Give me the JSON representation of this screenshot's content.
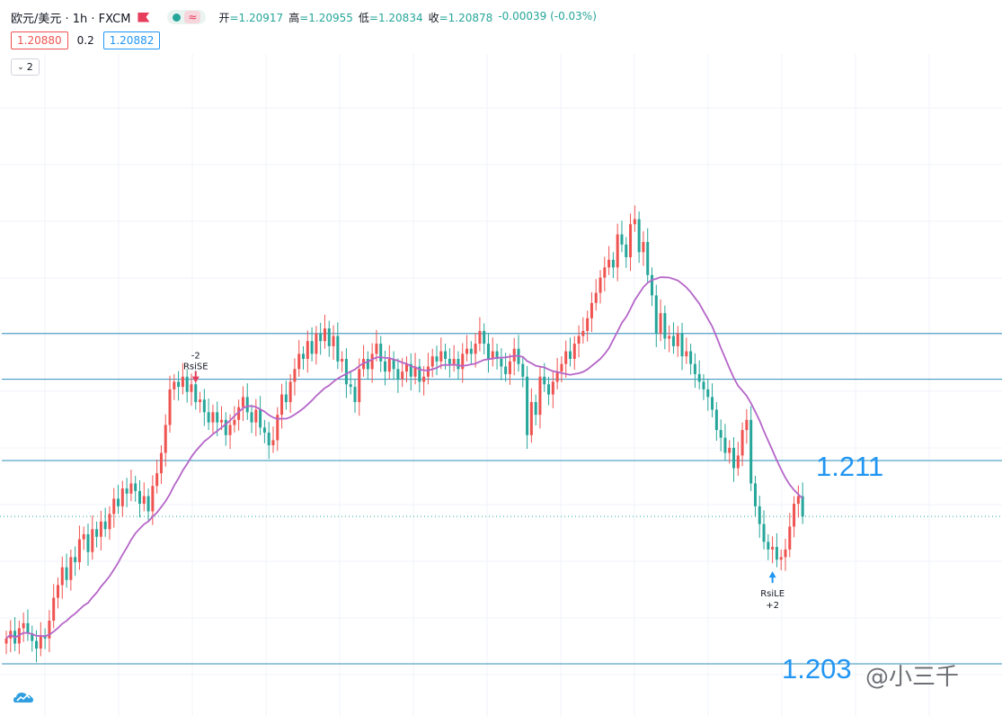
{
  "header": {
    "symbol": "欧元/美元 · 1h · FXCM",
    "wave_icon": "≈",
    "open_label": "开",
    "open": "=1.20917",
    "high_label": "高",
    "high": "=1.20955",
    "low_label": "低",
    "low": "=1.20834",
    "close_label": "收",
    "close": "=1.20878",
    "change": "-0.00039 (-0.03%)"
  },
  "quote": {
    "bid": "1.20880",
    "spread": "0.2",
    "ask": "1.20882"
  },
  "indicator_toggle": {
    "count": "2",
    "icon": "chevron-down-icon"
  },
  "watermark": "@小三千",
  "colors": {
    "up": "#ef5350",
    "down": "#26a69a",
    "ma": "#b565c8",
    "level": "#2e8fb8",
    "label": "#2196f3"
  },
  "chart_data": {
    "type": "candlestick",
    "grid": true,
    "levels": [
      {
        "value": 1.216,
        "label": ""
      },
      {
        "value": 1.2142,
        "label": ""
      },
      {
        "value": 1.211,
        "label": "1.211"
      },
      {
        "value": 1.203,
        "label": "1.203"
      }
    ],
    "current_price": 1.2088,
    "ma_period": 20,
    "closes": [
      1.204,
      1.2043,
      1.2038,
      1.2044,
      1.2046,
      1.2042,
      1.2039,
      1.2036,
      1.2041,
      1.204,
      1.2047,
      1.2056,
      1.2061,
      1.2068,
      1.2063,
      1.2072,
      1.207,
      1.2079,
      1.2081,
      1.2074,
      1.2083,
      1.208,
      1.2086,
      1.2083,
      1.2089,
      1.2095,
      1.2092,
      1.2099,
      1.2097,
      1.2101,
      1.2098,
      1.2093,
      1.2096,
      1.209,
      1.21,
      1.2105,
      1.2113,
      1.2124,
      1.2138,
      1.2141,
      1.2139,
      1.2143,
      1.2137,
      1.214,
      1.2133,
      1.2134,
      1.2129,
      1.2125,
      1.2129,
      1.2125,
      1.2126,
      1.212,
      1.2124,
      1.2126,
      1.2131,
      1.2135,
      1.2129,
      1.2125,
      1.213,
      1.2123,
      1.2121,
      1.2116,
      1.2118,
      1.2128,
      1.2136,
      1.2133,
      1.2141,
      1.2146,
      1.2152,
      1.215,
      1.2157,
      1.2152,
      1.216,
      1.2157,
      1.2162,
      1.2155,
      1.2159,
      1.2149,
      1.215,
      1.214,
      1.2139,
      1.2133,
      1.2146,
      1.215,
      1.2146,
      1.2152,
      1.2156,
      1.2149,
      1.2145,
      1.215,
      1.2146,
      1.2142,
      1.2145,
      1.2148,
      1.2143,
      1.2147,
      1.2141,
      1.2143,
      1.2147,
      1.2151,
      1.2149,
      1.2153,
      1.215,
      1.2148,
      1.215,
      1.2146,
      1.2152,
      1.2154,
      1.2152,
      1.2156,
      1.2161,
      1.2156,
      1.215,
      1.2153,
      1.215,
      1.2147,
      1.2144,
      1.2149,
      1.2154,
      1.2148,
      1.2143,
      1.212,
      1.2133,
      1.2128,
      1.2143,
      1.214,
      1.2136,
      1.2141,
      1.2145,
      1.2148,
      1.2153,
      1.215,
      1.2156,
      1.2159,
      1.2161,
      1.2166,
      1.2172,
      1.2176,
      1.2182,
      1.2186,
      1.2189,
      1.2186,
      1.2199,
      1.2195,
      1.219,
      1.2203,
      1.2205,
      1.2192,
      1.2196,
      1.2183,
      1.2175,
      1.216,
      1.2168,
      1.2158,
      1.2159,
      1.2155,
      1.216,
      1.2151,
      1.2153,
      1.2148,
      1.2144,
      1.2141,
      1.2138,
      1.2135,
      1.213,
      1.2122,
      1.2119,
      1.2113,
      1.2115,
      1.2107,
      1.2112,
      1.2122,
      1.2126,
      1.2101,
      1.2092,
      1.2085,
      1.2078,
      1.2075,
      1.2076,
      1.2071,
      1.2072,
      1.2075,
      1.2084,
      1.2093,
      1.2096,
      1.2088
    ],
    "signals": [
      {
        "type": "short",
        "line1": "-2",
        "line2": "RsiSE"
      },
      {
        "type": "long",
        "line1": "RsiLE",
        "line2": "+2"
      }
    ]
  }
}
